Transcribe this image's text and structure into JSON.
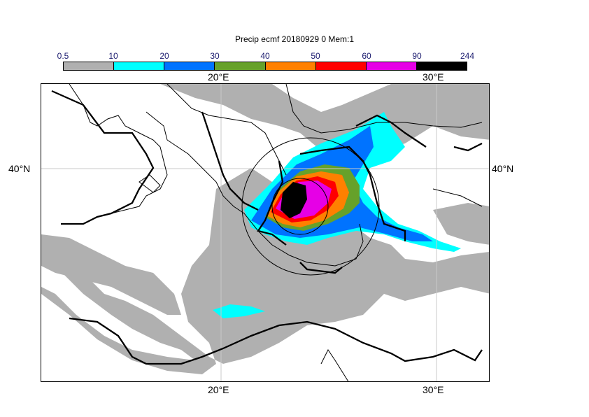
{
  "title": "Precip ecmf 20180929 0 Mem:1",
  "colorbar": {
    "labels": [
      "0.5",
      "10",
      "20",
      "30",
      "40",
      "50",
      "60",
      "90",
      "244"
    ],
    "colors": [
      "#b0b0b0",
      "#00ffff",
      "#0073ff",
      "#66a12a",
      "#ff8000",
      "#ff0000",
      "#e600e6",
      "#000000"
    ]
  },
  "axes": {
    "lon_top": [
      "20°E",
      "30°E"
    ],
    "lon_bottom": [
      "20°E",
      "30°E"
    ],
    "lat_left": "40°N",
    "lat_right": "40°N"
  }
}
